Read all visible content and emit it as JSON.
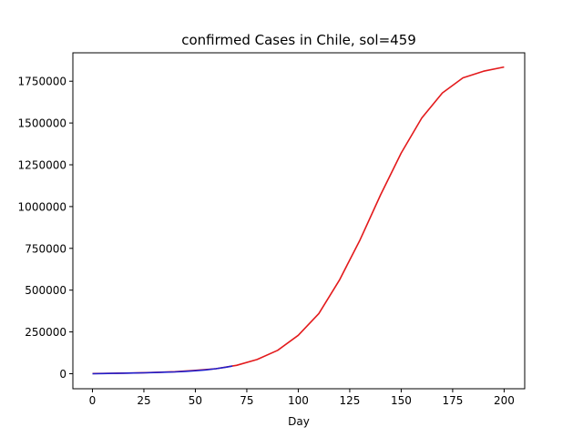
{
  "chart_data": {
    "type": "line",
    "title": "confirmed Cases in Chile, sol=459",
    "xlabel": "Day",
    "ylabel": "",
    "xlim": [
      -9.5,
      210
    ],
    "ylim": [
      -90000,
      1920000
    ],
    "grid": false,
    "xticks": [
      0,
      25,
      50,
      75,
      100,
      125,
      150,
      175,
      200
    ],
    "xtick_labels": [
      "0",
      "25",
      "50",
      "75",
      "100",
      "125",
      "150",
      "175",
      "200"
    ],
    "yticks": [
      0,
      250000,
      500000,
      750000,
      1000000,
      1250000,
      1500000,
      1750000
    ],
    "ytick_labels": [
      "0",
      "250000",
      "500000",
      "750000",
      "1000000",
      "1250000",
      "1500000",
      "1750000"
    ],
    "series": [
      {
        "color": "#e31a1c",
        "x": [
          0,
          10,
          20,
          30,
          40,
          50,
          60,
          70,
          80,
          90,
          100,
          110,
          120,
          125,
          130,
          140,
          150,
          160,
          170,
          180,
          190,
          200
        ],
        "values": [
          1000,
          2500,
          4500,
          7500,
          12000,
          20000,
          30000,
          50000,
          85000,
          140000,
          230000,
          360000,
          560000,
          680000,
          800000,
          1070000,
          1320000,
          1530000,
          1680000,
          1770000,
          1810000,
          1835000
        ]
      },
      {
        "color": "#1f1fcc",
        "x": [
          0,
          5,
          10,
          15,
          20,
          25,
          30,
          35,
          40,
          45,
          50,
          55,
          60,
          65,
          68
        ],
        "values": [
          0,
          1000,
          2000,
          3000,
          4000,
          5500,
          7000,
          9000,
          11000,
          14000,
          18000,
          23000,
          30000,
          39000,
          46000
        ]
      }
    ]
  }
}
